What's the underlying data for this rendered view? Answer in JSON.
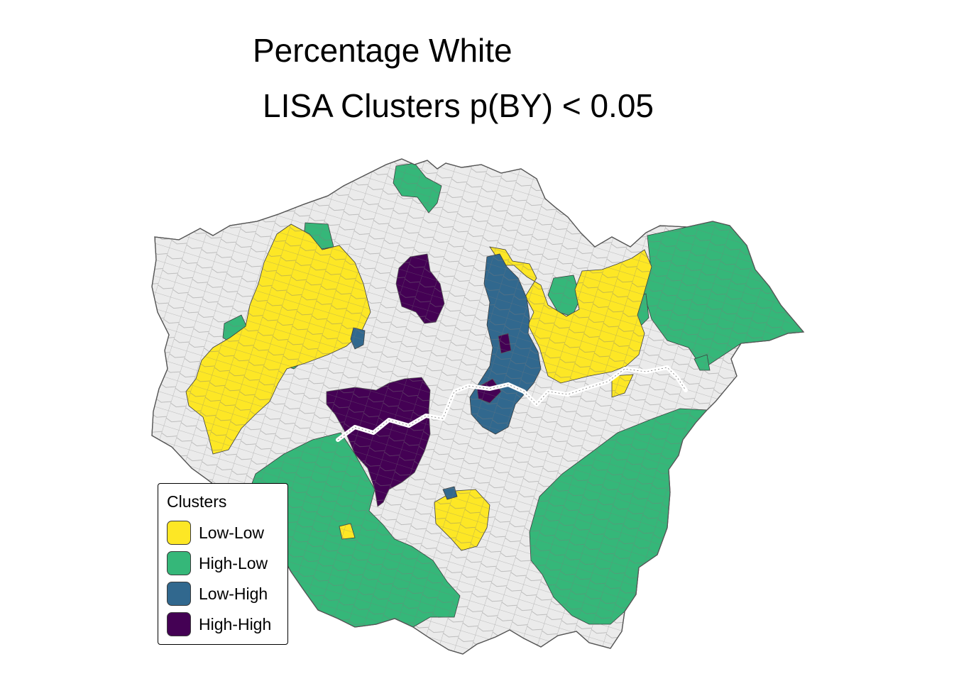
{
  "title": "Percentage White",
  "subtitle": "LISA Clusters p(BY) < 0.05",
  "legend": {
    "title": "Clusters",
    "items": [
      {
        "label": "Low-Low",
        "color": "#FDE725"
      },
      {
        "label": "High-Low",
        "color": "#35B779"
      },
      {
        "label": "Low-High",
        "color": "#31688E"
      },
      {
        "label": "High-High",
        "color": "#440154"
      }
    ]
  },
  "colors": {
    "not_significant": "#EBEBEB",
    "boundary": "#6E6E6E",
    "river": "#FFFFFF"
  }
}
